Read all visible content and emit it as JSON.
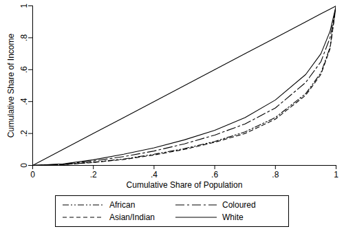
{
  "chart_data": {
    "type": "line",
    "x_label": "Cumulative Share of Population",
    "y_label": "Cumulative Share of Income",
    "x": [
      0,
      0.1,
      0.2,
      0.3,
      0.4,
      0.5,
      0.6,
      0.7,
      0.8,
      0.9,
      0.95,
      0.98,
      1
    ],
    "series": [
      {
        "name": null,
        "color": "#000000",
        "line_style": "solid",
        "values": [
          0,
          0.1,
          0.2,
          0.3,
          0.4,
          0.5,
          0.6,
          0.7,
          0.8,
          0.9,
          0.95,
          0.98,
          1
        ]
      },
      {
        "name": "African",
        "color": "#000000",
        "line_style": "dashdotdot",
        "values": [
          0,
          0.005,
          0.02,
          0.04,
          0.07,
          0.105,
          0.15,
          0.21,
          0.3,
          0.45,
          0.58,
          0.74,
          1
        ]
      },
      {
        "name": "Coloured",
        "color": "#000000",
        "line_style": "longdashdot",
        "values": [
          0,
          0.008,
          0.028,
          0.055,
          0.09,
          0.135,
          0.19,
          0.26,
          0.36,
          0.52,
          0.65,
          0.8,
          1
        ]
      },
      {
        "name": "Asian/Indian",
        "color": "#000000",
        "line_style": "dashed",
        "values": [
          0,
          0.005,
          0.018,
          0.037,
          0.065,
          0.1,
          0.145,
          0.2,
          0.29,
          0.44,
          0.57,
          0.73,
          1
        ]
      },
      {
        "name": "White",
        "color": "#000000",
        "line_style": "solid",
        "values": [
          0,
          0.01,
          0.035,
          0.07,
          0.11,
          0.16,
          0.22,
          0.3,
          0.41,
          0.57,
          0.7,
          0.84,
          1
        ]
      }
    ],
    "xlim": [
      0,
      1
    ],
    "ylim": [
      0,
      1
    ],
    "xticks": [
      0,
      {
        "value": 0.2,
        "label": ".2"
      },
      {
        "value": 0.4,
        "label": ".4"
      },
      {
        "value": 0.6,
        "label": ".6"
      },
      {
        "value": 0.8,
        "label": ".8"
      },
      1
    ],
    "yticks": [
      0,
      {
        "value": 0.2,
        "label": ".2"
      },
      {
        "value": 0.4,
        "label": ".4"
      },
      {
        "value": 0.6,
        "label": ".6"
      },
      {
        "value": 0.8,
        "label": ".8"
      },
      1
    ],
    "grid": false,
    "legend": "bottom"
  }
}
